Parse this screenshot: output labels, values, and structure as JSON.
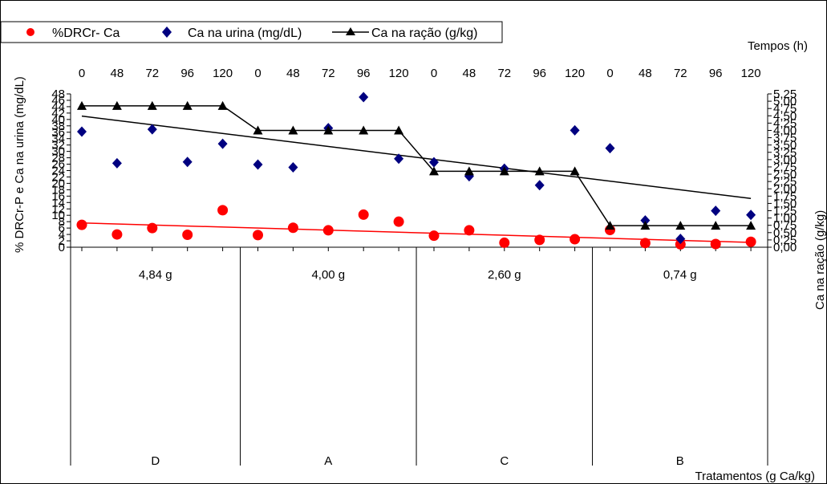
{
  "chart_data": {
    "type": "scatter",
    "legend": {
      "placement": "top-left",
      "entries": [
        "%DRCr- Ca",
        "Ca na urina (mg/dL)",
        "Ca na ração (g/kg)"
      ]
    },
    "top_axis": {
      "title": "Tempos (h)",
      "tick_labels": [
        "0",
        "48",
        "72",
        "96",
        "120",
        "0",
        "48",
        "72",
        "96",
        "120",
        "0",
        "48",
        "72",
        "96",
        "120",
        "0",
        "48",
        "72",
        "96",
        "120"
      ]
    },
    "left_axis": {
      "label": "% DRCr-P e Ca na urina (mg/dL)",
      "ylim": [
        0,
        48
      ],
      "tick_labels": [
        "0",
        "2",
        "4",
        "6",
        "8",
        "10",
        "12",
        "14",
        "16",
        "18",
        "20",
        "22",
        "24",
        "26",
        "28",
        "30",
        "32",
        "34",
        "36",
        "38",
        "40",
        "42",
        "44",
        "46",
        "48"
      ]
    },
    "right_axis": {
      "label": "Ca na ração (g/kg)",
      "ylim": [
        0,
        5.25
      ],
      "tick_labels": [
        "0,00",
        "0,25",
        "0,50",
        "0,75",
        "1,00",
        "1,25",
        "1,50",
        "1,75",
        "2,00",
        "2,25",
        "2,50",
        "2,75",
        "3,00",
        "3,25",
        "3,50",
        "3,75",
        "4,00",
        "4,25",
        "4,50",
        "4,75",
        "5,00",
        "5,25"
      ]
    },
    "bottom_axis": {
      "title": "Tratamentos (g  Ca/kg)",
      "groups": [
        {
          "dose": "4,84 g",
          "code": "D"
        },
        {
          "dose": "4,00 g",
          "code": "A"
        },
        {
          "dose": "2,60 g",
          "code": "C"
        },
        {
          "dose": "0,74 g",
          "code": "B"
        }
      ]
    },
    "x_positions": [
      1,
      2,
      3,
      4,
      5,
      6,
      7,
      8,
      9,
      10,
      11,
      12,
      13,
      14,
      15,
      16,
      17,
      18,
      19,
      20
    ],
    "series": [
      {
        "name": "%DRCr- Ca",
        "axis": "left",
        "color": "#ff0000",
        "marker": "circle",
        "values": [
          7.0,
          4.0,
          6.0,
          3.9,
          11.6,
          3.8,
          6.1,
          5.3,
          10.2,
          8.0,
          3.6,
          5.3,
          1.4,
          2.3,
          2.5,
          5.4,
          1.3,
          0.9,
          1.0,
          1.7
        ]
      },
      {
        "name": "Ca na urina (mg/dL)",
        "axis": "left",
        "color": "#000080",
        "marker": "diamond",
        "values": [
          36.2,
          26.3,
          36.9,
          26.7,
          32.4,
          25.9,
          25.0,
          37.3,
          47.0,
          27.7,
          26.6,
          22.2,
          24.6,
          19.4,
          36.6,
          31.0,
          8.4,
          2.6,
          11.4,
          10.1
        ]
      },
      {
        "name": "Ca na ração (g/kg)",
        "axis": "right",
        "color": "#000000",
        "marker": "triangle",
        "line": "step",
        "values": [
          4.84,
          4.84,
          4.84,
          4.84,
          4.84,
          4.0,
          4.0,
          4.0,
          4.0,
          4.0,
          2.6,
          2.6,
          2.6,
          2.6,
          2.6,
          0.74,
          0.74,
          0.74,
          0.74,
          0.74
        ]
      }
    ],
    "trendlines": [
      {
        "series": "Ca na ração (g/kg)",
        "axis": "right",
        "color": "#000000",
        "from": [
          1,
          4.49
        ],
        "to": [
          20,
          1.67
        ]
      },
      {
        "series": "%DRCr- Ca",
        "axis": "left",
        "color": "#ff0000",
        "from": [
          1,
          7.6
        ],
        "to": [
          20,
          1.5
        ]
      }
    ]
  }
}
